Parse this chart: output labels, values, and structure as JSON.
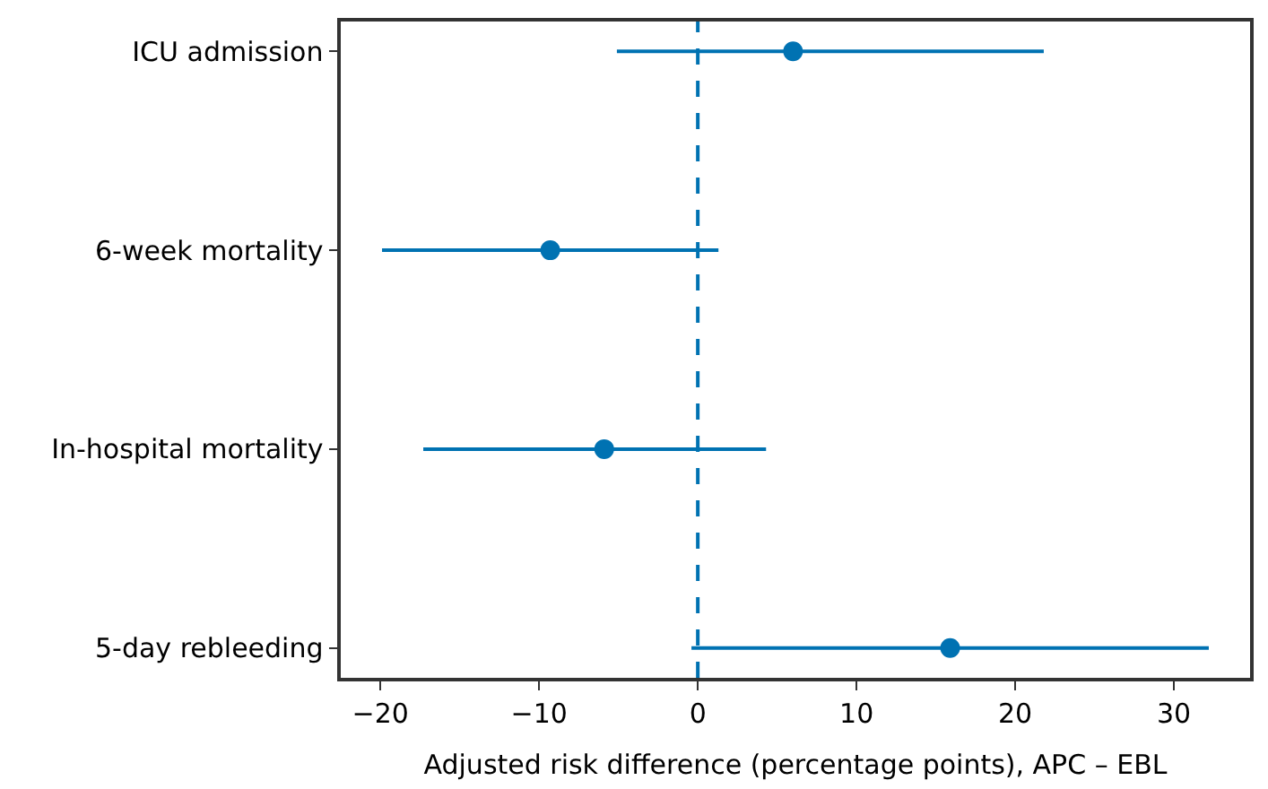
{
  "chart_data": {
    "type": "scatter",
    "orientation": "horizontal",
    "xlabel": "Adjusted risk difference (percentage points), APC – EBL",
    "categories": [
      "ICU admission",
      "6-week mortality",
      "In-hospital mortality",
      "5-day rebleeding"
    ],
    "series": [
      {
        "color": "#0072b2",
        "values": [
          6.0,
          -9.3,
          -5.9,
          15.9
        ],
        "errors": [
          [
            -5.1,
            21.8
          ],
          [
            -19.9,
            1.3
          ],
          [
            -17.3,
            4.3
          ],
          [
            -0.4,
            32.2
          ]
        ]
      }
    ],
    "xlim": [
      -22.5,
      34.8
    ],
    "xticks": [
      {
        "value": -20,
        "label": "−20"
      },
      {
        "value": -10,
        "label": "−10"
      },
      0,
      10,
      20,
      30
    ],
    "ref_lines": [
      {
        "axis": "x",
        "value": 0,
        "color": "#0072b2",
        "line_style": "dashed"
      }
    ],
    "marker": "circle"
  }
}
